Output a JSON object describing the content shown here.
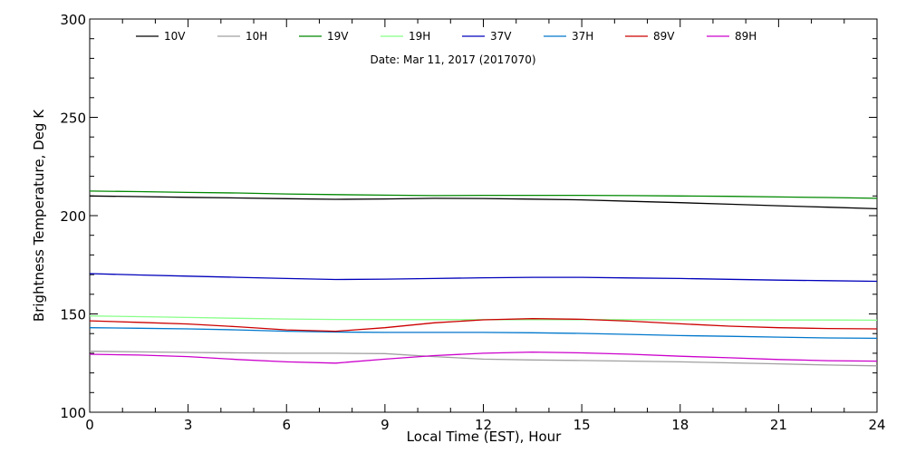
{
  "chart_data": {
    "type": "line",
    "annotation": "Date: Mar 11, 2017 (2017070)",
    "xlabel": "Local Time (EST), Hour",
    "ylabel": "Brightness Temperature, Deg K",
    "xlim": [
      0,
      24
    ],
    "ylim": [
      100,
      300
    ],
    "xticks": [
      0,
      3,
      6,
      9,
      12,
      15,
      18,
      21,
      24
    ],
    "yticks": [
      100,
      150,
      200,
      250,
      300
    ],
    "grid": false,
    "legend_position": "top",
    "x": [
      0,
      1.5,
      3,
      4.5,
      6,
      7.5,
      9,
      10.5,
      12,
      13.5,
      15,
      16.5,
      18,
      19.5,
      21,
      22.5,
      24
    ],
    "series": [
      {
        "name": "10V",
        "color": "#000000",
        "values": [
          210,
          209.7,
          209.3,
          209,
          208.6,
          208.3,
          208.5,
          208.8,
          208.7,
          208.4,
          208,
          207.3,
          206.6,
          205.8,
          205,
          204.3,
          203.5
        ]
      },
      {
        "name": "10H",
        "color": "#a0a0a0",
        "values": [
          131,
          130.7,
          130.4,
          130.2,
          130,
          130,
          129.8,
          128.3,
          127,
          126.6,
          126.3,
          126,
          125.6,
          125.1,
          124.6,
          124,
          123.6
        ]
      },
      {
        "name": "19V",
        "color": "#008800",
        "values": [
          212.5,
          212.2,
          211.8,
          211.5,
          211,
          210.7,
          210.4,
          210.2,
          210.3,
          210.3,
          210.3,
          210.2,
          210,
          209.8,
          209.5,
          209.2,
          208.8
        ]
      },
      {
        "name": "19H",
        "color": "#88ff88",
        "values": [
          149,
          148.6,
          148.2,
          147.8,
          147.4,
          147.2,
          147.1,
          147.1,
          147.1,
          147.1,
          147.1,
          147.1,
          147,
          147,
          146.9,
          146.9,
          146.8
        ]
      },
      {
        "name": "37V",
        "color": "#0000bb",
        "values": [
          170.5,
          169.8,
          169.2,
          168.6,
          168,
          167.5,
          167.7,
          168,
          168.4,
          168.6,
          168.6,
          168.3,
          168,
          167.6,
          167.2,
          166.9,
          166.6
        ]
      },
      {
        "name": "37H",
        "color": "#0077cc",
        "values": [
          143,
          142.7,
          142.4,
          141.9,
          141.2,
          140.8,
          140.6,
          140.6,
          140.6,
          140.4,
          140.1,
          139.6,
          139,
          138.6,
          138.2,
          137.8,
          137.6
        ]
      },
      {
        "name": "89V",
        "color": "#cc0000",
        "values": [
          146.5,
          145.7,
          144.9,
          143.5,
          141.9,
          141.2,
          143,
          145.5,
          147,
          147.6,
          147.3,
          146.3,
          145,
          143.8,
          143,
          142.6,
          142.4
        ]
      },
      {
        "name": "89H",
        "color": "#cc00cc",
        "values": [
          129.5,
          129.1,
          128.3,
          126.8,
          125.6,
          125,
          127,
          128.8,
          130,
          130.6,
          130.2,
          129.5,
          128.5,
          127.7,
          126.8,
          126.2,
          126
        ]
      }
    ]
  }
}
